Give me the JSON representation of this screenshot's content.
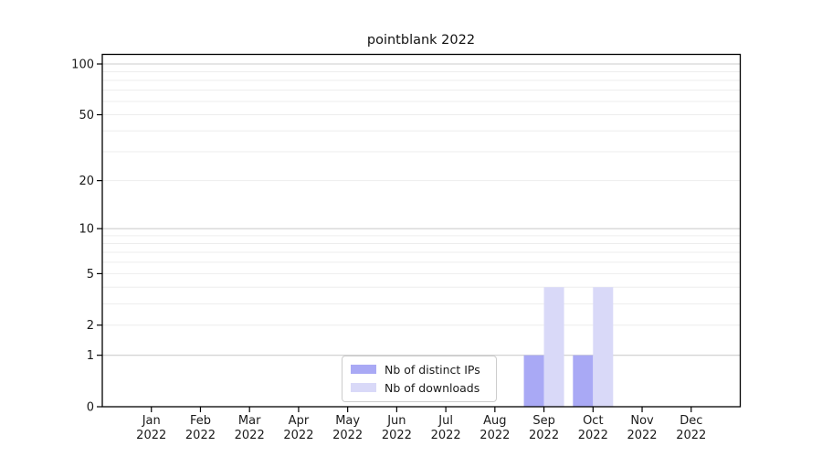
{
  "chart_data": {
    "type": "bar",
    "title": "pointblank 2022",
    "xlabel": "",
    "ylabel": "",
    "categories": [
      "Jan",
      "Feb",
      "Mar",
      "Apr",
      "May",
      "Jun",
      "Jul",
      "Aug",
      "Sep",
      "Oct",
      "Nov",
      "Dec"
    ],
    "category_year": "2022",
    "series": [
      {
        "name": "Nb of distinct IPs",
        "color": "#a9a9f5",
        "values": [
          0,
          0,
          0,
          0,
          0,
          0,
          0,
          0,
          1,
          1,
          0,
          0
        ]
      },
      {
        "name": "Nb of downloads",
        "color": "#d9d9f8",
        "values": [
          0,
          0,
          0,
          0,
          0,
          0,
          0,
          0,
          4,
          4,
          0,
          0
        ]
      }
    ],
    "yscale": "log1p",
    "ylim": [
      0,
      100
    ],
    "yticks": [
      0,
      1,
      2,
      5,
      10,
      20,
      50,
      100
    ],
    "major_gridlines": [
      1,
      10,
      100
    ],
    "minor_gridlines": [
      2,
      3,
      4,
      5,
      6,
      7,
      8,
      9,
      20,
      30,
      40,
      50,
      60,
      70,
      80,
      90
    ],
    "grid": "horizontal",
    "legend_position": "bottom-center",
    "colors": {
      "axis": "#000000",
      "tick_text": "#1a1a1a",
      "major_grid": "#cdcdcd",
      "minor_grid": "#ededed",
      "legend_border": "#cccccc",
      "background": "#ffffff"
    }
  }
}
